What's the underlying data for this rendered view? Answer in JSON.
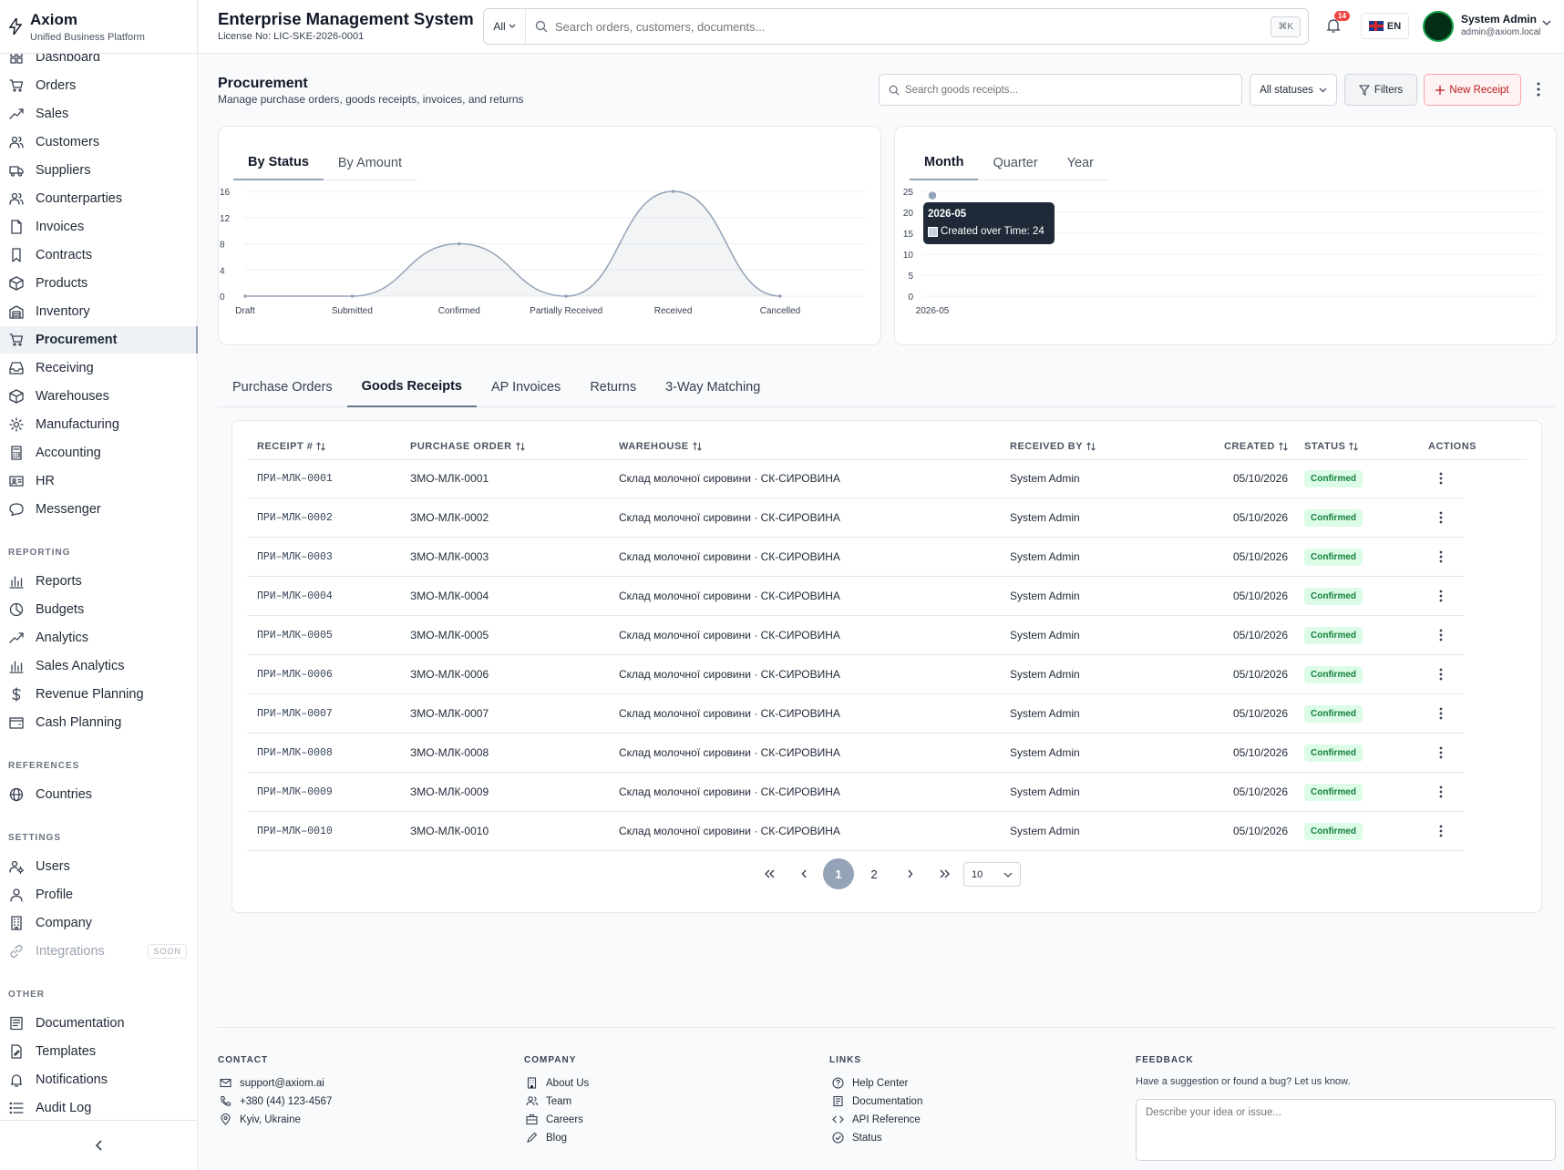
{
  "brand": {
    "name": "Axiom",
    "subtitle": "Unified Business Platform"
  },
  "header": {
    "title": "Enterprise Management System",
    "license": "License No: LIC-SKE-2026-0001",
    "search_scope": "All",
    "search_placeholder": "Search orders, customers, documents...",
    "shortcut": "⌘K",
    "notification_count": "14",
    "language": "EN",
    "user_name": "System Admin",
    "user_email": "admin@axiom.local"
  },
  "sidebar": {
    "main_items": [
      {
        "label": "Dashboard",
        "icon": "dashboard-icon"
      },
      {
        "label": "Orders",
        "icon": "cart-icon"
      },
      {
        "label": "Sales",
        "icon": "trend-icon"
      },
      {
        "label": "Customers",
        "icon": "users-icon"
      },
      {
        "label": "Suppliers",
        "icon": "truck-icon"
      },
      {
        "label": "Counterparties",
        "icon": "users-icon"
      },
      {
        "label": "Invoices",
        "icon": "file-icon"
      },
      {
        "label": "Contracts",
        "icon": "bookmark-icon"
      },
      {
        "label": "Products",
        "icon": "box-icon"
      },
      {
        "label": "Inventory",
        "icon": "warehouse-icon"
      },
      {
        "label": "Procurement",
        "icon": "cart-icon"
      },
      {
        "label": "Receiving",
        "icon": "inbox-icon"
      },
      {
        "label": "Warehouses",
        "icon": "box-icon"
      },
      {
        "label": "Manufacturing",
        "icon": "gear-icon"
      },
      {
        "label": "Accounting",
        "icon": "calculator-icon"
      },
      {
        "label": "HR",
        "icon": "id-card-icon"
      },
      {
        "label": "Messenger",
        "icon": "chat-icon"
      }
    ],
    "reporting_label": "REPORTING",
    "reporting_items": [
      {
        "label": "Reports",
        "icon": "bar-chart-icon"
      },
      {
        "label": "Budgets",
        "icon": "pie-chart-icon"
      },
      {
        "label": "Analytics",
        "icon": "trend-icon"
      },
      {
        "label": "Sales Analytics",
        "icon": "bar-chart-icon"
      },
      {
        "label": "Revenue Planning",
        "icon": "dollar-icon"
      },
      {
        "label": "Cash Planning",
        "icon": "wallet-icon"
      }
    ],
    "references_label": "REFERENCES",
    "references_items": [
      {
        "label": "Countries",
        "icon": "globe-icon"
      }
    ],
    "settings_label": "SETTINGS",
    "settings_items": [
      {
        "label": "Users",
        "icon": "users-cog-icon"
      },
      {
        "label": "Profile",
        "icon": "user-icon"
      },
      {
        "label": "Company",
        "icon": "building-icon"
      },
      {
        "label": "Integrations",
        "icon": "link-icon",
        "badge": "SOON"
      }
    ],
    "other_label": "OTHER",
    "other_items": [
      {
        "label": "Documentation",
        "icon": "book-icon"
      },
      {
        "label": "Templates",
        "icon": "template-icon"
      },
      {
        "label": "Notifications",
        "icon": "bell-icon"
      },
      {
        "label": "Audit Log",
        "icon": "list-icon"
      }
    ]
  },
  "page": {
    "title": "Procurement",
    "subtitle": "Manage purchase orders, goods receipts, invoices, and returns",
    "search_placeholder": "Search goods receipts...",
    "status_filter": "All statuses",
    "filters_label": "Filters",
    "new_label": "New Receipt"
  },
  "chart_left_tabs": [
    "By Status",
    "By Amount"
  ],
  "chart_right_tabs": [
    "Month",
    "Quarter",
    "Year"
  ],
  "tooltip": {
    "title": "2026-05",
    "text": "Created over Time: 24"
  },
  "chart_data": [
    {
      "type": "area",
      "categories": [
        "Draft",
        "Submitted",
        "Confirmed",
        "Partially Received",
        "Received",
        "Cancelled"
      ],
      "values": [
        0,
        0,
        8,
        0,
        16,
        0
      ],
      "yticks": [
        "0",
        "4",
        "8",
        "12",
        "16"
      ],
      "ylim": [
        0,
        16
      ],
      "color": "#94a3b8"
    },
    {
      "type": "line",
      "x": [
        "2026-05"
      ],
      "series": [
        {
          "name": "Created over Time",
          "values": [
            24
          ]
        }
      ],
      "yticks": [
        "0",
        "5",
        "10",
        "15",
        "20",
        "25"
      ],
      "ylim": [
        0,
        25
      ],
      "color": "#94a3b8"
    }
  ],
  "main_tabs": [
    "Purchase Orders",
    "Goods Receipts",
    "AP Invoices",
    "Returns",
    "3-Way Matching"
  ],
  "table": {
    "columns": [
      "RECEIPT #",
      "PURCHASE ORDER",
      "WAREHOUSE",
      "RECEIVED BY",
      "CREATED",
      "STATUS",
      "ACTIONS"
    ],
    "rows": [
      {
        "receipt": "ПРИ–МЛК–0001",
        "po": "ЗМО-МЛК-0001",
        "warehouse": "Склад молочної сировини · СК-СИРОВИНА",
        "by": "System Admin",
        "created": "05/10/2026",
        "status": "Confirmed"
      },
      {
        "receipt": "ПРИ–МЛК–0002",
        "po": "ЗМО-МЛК-0002",
        "warehouse": "Склад молочної сировини · СК-СИРОВИНА",
        "by": "System Admin",
        "created": "05/10/2026",
        "status": "Confirmed"
      },
      {
        "receipt": "ПРИ–МЛК–0003",
        "po": "ЗМО-МЛК-0003",
        "warehouse": "Склад молочної сировини · СК-СИРОВИНА",
        "by": "System Admin",
        "created": "05/10/2026",
        "status": "Confirmed"
      },
      {
        "receipt": "ПРИ–МЛК–0004",
        "po": "ЗМО-МЛК-0004",
        "warehouse": "Склад молочної сировини · СК-СИРОВИНА",
        "by": "System Admin",
        "created": "05/10/2026",
        "status": "Confirmed"
      },
      {
        "receipt": "ПРИ–МЛК–0005",
        "po": "ЗМО-МЛК-0005",
        "warehouse": "Склад молочної сировини · СК-СИРОВИНА",
        "by": "System Admin",
        "created": "05/10/2026",
        "status": "Confirmed"
      },
      {
        "receipt": "ПРИ–МЛК–0006",
        "po": "ЗМО-МЛК-0006",
        "warehouse": "Склад молочної сировини · СК-СИРОВИНА",
        "by": "System Admin",
        "created": "05/10/2026",
        "status": "Confirmed"
      },
      {
        "receipt": "ПРИ–МЛК–0007",
        "po": "ЗМО-МЛК-0007",
        "warehouse": "Склад молочної сировини · СК-СИРОВИНА",
        "by": "System Admin",
        "created": "05/10/2026",
        "status": "Confirmed"
      },
      {
        "receipt": "ПРИ–МЛК–0008",
        "po": "ЗМО-МЛК-0008",
        "warehouse": "Склад молочної сировини · СК-СИРОВИНА",
        "by": "System Admin",
        "created": "05/10/2026",
        "status": "Confirmed"
      },
      {
        "receipt": "ПРИ–МЛК–0009",
        "po": "ЗМО-МЛК-0009",
        "warehouse": "Склад молочної сировини · СК-СИРОВИНА",
        "by": "System Admin",
        "created": "05/10/2026",
        "status": "Confirmed"
      },
      {
        "receipt": "ПРИ–МЛК–0010",
        "po": "ЗМО-МЛК-0010",
        "warehouse": "Склад молочної сировини · СК-СИРОВИНА",
        "by": "System Admin",
        "created": "05/10/2026",
        "status": "Confirmed"
      }
    ]
  },
  "pagination": {
    "pages": [
      "1",
      "2"
    ],
    "current": "1",
    "page_size": "10"
  },
  "footer": {
    "contact_label": "CONTACT",
    "contact": [
      "support@axiom.ai",
      "+380 (44) 123-4567",
      "Kyiv, Ukraine"
    ],
    "company_label": "COMPANY",
    "company": [
      "About Us",
      "Team",
      "Careers",
      "Blog"
    ],
    "links_label": "LINKS",
    "links": [
      "Help Center",
      "Documentation",
      "API Reference",
      "Status"
    ],
    "feedback_label": "FEEDBACK",
    "feedback_text": "Have a suggestion or found a bug? Let us know.",
    "feedback_placeholder": "Describe your idea or issue..."
  },
  "colors": {
    "accent": "#94a3b8",
    "success_bg": "#dcfce7",
    "success_text": "#15803d",
    "danger": "#ef4444"
  }
}
